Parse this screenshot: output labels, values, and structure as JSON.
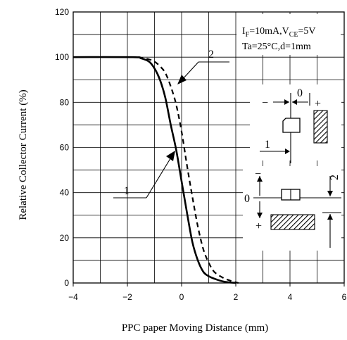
{
  "chart_data": {
    "type": "line",
    "xlabel": "PPC paper Moving Distance (mm)",
    "ylabel": "Relative Collector Current (%)",
    "xlim": [
      -4,
      6
    ],
    "ylim": [
      0,
      120
    ],
    "xticks": [
      -4,
      -2,
      0,
      2,
      4,
      6
    ],
    "yticks": [
      0,
      20,
      40,
      60,
      80,
      100,
      120
    ],
    "xtick_labels": [
      "−4",
      "−2",
      "0",
      "2",
      "4",
      "6"
    ],
    "ytick_labels": [
      "0",
      "20",
      "40",
      "60",
      "80",
      "100",
      "120"
    ],
    "grid": true,
    "conditions": {
      "line1_prefix": "I",
      "line1_sub1": "F",
      "line1_mid": "=10mA,V",
      "line1_sub2": "CE",
      "line1_suffix": "=5V",
      "line2": "Ta=25°C,d=1mm"
    },
    "series": [
      {
        "name": "1",
        "style": "solid",
        "x": [
          -4,
          -1.8,
          -1.5,
          -1.2,
          -1.0,
          -0.8,
          -0.6,
          -0.4,
          -0.2,
          0,
          0.2,
          0.4,
          0.6,
          0.8,
          1.0,
          1.3,
          1.6,
          2.0
        ],
        "y": [
          100,
          100,
          99.5,
          98,
          95,
          90,
          82,
          70,
          59,
          45,
          31,
          18,
          10,
          5,
          3,
          1.5,
          0.5,
          0
        ]
      },
      {
        "name": "2",
        "style": "dashed",
        "x": [
          -1.6,
          -1.2,
          -1.0,
          -0.8,
          -0.6,
          -0.4,
          -0.2,
          0,
          0.2,
          0.4,
          0.6,
          0.8,
          1.0,
          1.2,
          1.5,
          1.8,
          2.1
        ],
        "y": [
          100,
          99,
          98,
          96,
          93,
          87,
          79,
          67,
          52,
          38,
          25,
          15,
          9,
          5,
          2.5,
          1,
          0
        ]
      }
    ],
    "callouts": [
      "1",
      "2"
    ],
    "inset_labels": {
      "top_zero": "0",
      "top_minus": "−",
      "top_plus": "+",
      "top_one": "1",
      "bottom_zero": "0",
      "bottom_minus": "−",
      "bottom_plus": "+",
      "bottom_two": "2"
    },
    "colors": {
      "line": "#000000",
      "grid": "#000000",
      "background": "#ffffff"
    }
  }
}
